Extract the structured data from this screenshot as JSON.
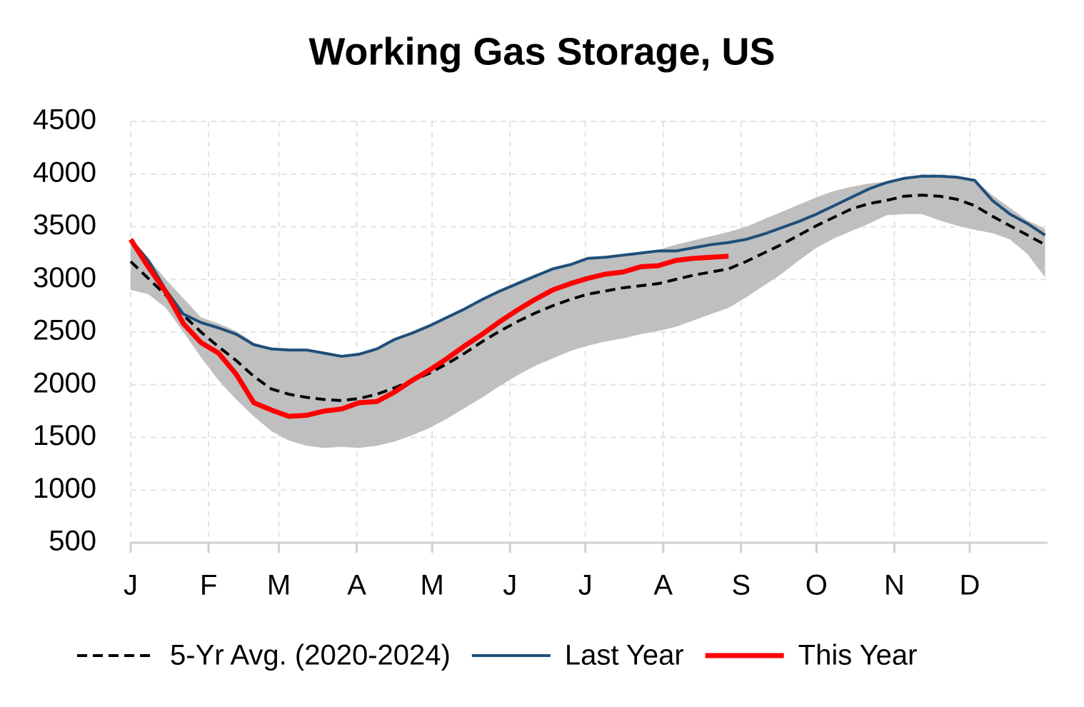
{
  "chart_data": {
    "type": "line",
    "title": "Working Gas Storage, US",
    "x": [
      0,
      7,
      14,
      21,
      28,
      35,
      42,
      49,
      56,
      63,
      70,
      77,
      84,
      91,
      98,
      105,
      112,
      119,
      126,
      133,
      140,
      147,
      154,
      161,
      168,
      175,
      182,
      189,
      196,
      203,
      210,
      217,
      224,
      231,
      238,
      245,
      252,
      259,
      266,
      273,
      280,
      287,
      294,
      301,
      308,
      315,
      322,
      329,
      336,
      343,
      350,
      357,
      364
    ],
    "xlim": [
      0,
      365
    ],
    "xticks": [
      {
        "value": 0,
        "label": "J"
      },
      {
        "value": 31,
        "label": "F"
      },
      {
        "value": 59,
        "label": "M"
      },
      {
        "value": 90,
        "label": "A"
      },
      {
        "value": 120,
        "label": "M"
      },
      {
        "value": 151,
        "label": "J"
      },
      {
        "value": 181,
        "label": "J"
      },
      {
        "value": 212,
        "label": "A"
      },
      {
        "value": 243,
        "label": "S"
      },
      {
        "value": 273,
        "label": "O"
      },
      {
        "value": 304,
        "label": "N"
      },
      {
        "value": 334,
        "label": "D"
      }
    ],
    "ylim": [
      500,
      4500
    ],
    "yticks": [
      500,
      1000,
      1500,
      2000,
      2500,
      3000,
      3500,
      4000,
      4500
    ],
    "grid": true,
    "band": {
      "color": "#bfbfbf",
      "upper": [
        3380,
        3200,
        3000,
        2820,
        2640,
        2580,
        2510,
        2400,
        2350,
        2330,
        2330,
        2300,
        2270,
        2290,
        2340,
        2430,
        2490,
        2570,
        2650,
        2720,
        2810,
        2900,
        2980,
        3050,
        3110,
        3140,
        3200,
        3210,
        3230,
        3250,
        3280,
        3330,
        3370,
        3410,
        3450,
        3500,
        3570,
        3640,
        3710,
        3780,
        3840,
        3880,
        3910,
        3930,
        3950,
        3980,
        3980,
        3970,
        3940,
        3800,
        3680,
        3560,
        3480
      ],
      "lower": [
        2900,
        2860,
        2730,
        2500,
        2260,
        2040,
        1860,
        1700,
        1560,
        1470,
        1420,
        1400,
        1410,
        1400,
        1420,
        1460,
        1520,
        1590,
        1680,
        1780,
        1880,
        1990,
        2090,
        2180,
        2250,
        2320,
        2370,
        2410,
        2440,
        2480,
        2510,
        2550,
        2610,
        2670,
        2730,
        2830,
        2940,
        3050,
        3180,
        3300,
        3390,
        3460,
        3530,
        3610,
        3620,
        3620,
        3560,
        3510,
        3470,
        3440,
        3380,
        3240,
        3020
      ]
    },
    "series": [
      {
        "name": "5-Yr Avg. (2020-2024)",
        "color": "#000000",
        "dashed": true,
        "width": 4,
        "values": [
          3170,
          3010,
          2850,
          2660,
          2500,
          2360,
          2230,
          2080,
          1960,
          1910,
          1880,
          1860,
          1850,
          1870,
          1910,
          1970,
          2040,
          2110,
          2200,
          2300,
          2410,
          2510,
          2600,
          2680,
          2750,
          2810,
          2860,
          2890,
          2920,
          2940,
          2960,
          3000,
          3040,
          3070,
          3100,
          3170,
          3250,
          3330,
          3420,
          3510,
          3590,
          3670,
          3720,
          3750,
          3790,
          3800,
          3790,
          3760,
          3700,
          3600,
          3510,
          3420,
          3330
        ]
      },
      {
        "name": "Last Year",
        "color": "#1f4e79",
        "dashed": false,
        "width": 4,
        "values": [
          3380,
          3180,
          2900,
          2670,
          2590,
          2540,
          2480,
          2380,
          2340,
          2330,
          2330,
          2300,
          2270,
          2290,
          2340,
          2430,
          2490,
          2560,
          2640,
          2720,
          2810,
          2890,
          2960,
          3030,
          3100,
          3140,
          3200,
          3210,
          3230,
          3250,
          3270,
          3270,
          3300,
          3330,
          3350,
          3380,
          3430,
          3490,
          3550,
          3620,
          3700,
          3780,
          3860,
          3920,
          3960,
          3980,
          3980,
          3970,
          3940,
          3750,
          3620,
          3530,
          3420
        ]
      },
      {
        "name": "This Year",
        "color": "#ff0000",
        "dashed": false,
        "width": 7,
        "values": [
          3380,
          3120,
          2880,
          2580,
          2400,
          2300,
          2100,
          1830,
          1760,
          1700,
          1710,
          1750,
          1770,
          1830,
          1840,
          1930,
          2040,
          2140,
          2250,
          2370,
          2480,
          2600,
          2710,
          2810,
          2900,
          2960,
          3010,
          3050,
          3070,
          3120,
          3130,
          3180,
          3200,
          3210,
          3220,
          null,
          null,
          null,
          null,
          null,
          null,
          null,
          null,
          null,
          null,
          null,
          null,
          null,
          null,
          null,
          null,
          null,
          null
        ]
      }
    ]
  }
}
